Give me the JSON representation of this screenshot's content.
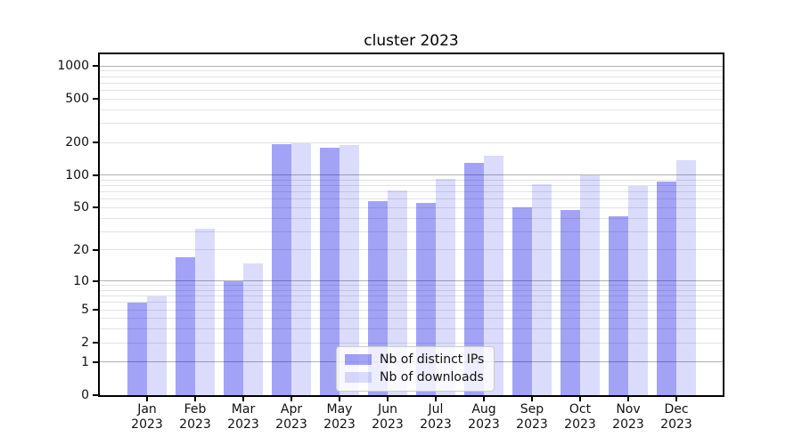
{
  "title": "cluster 2023",
  "chart_data": {
    "type": "bar",
    "title": "cluster 2023",
    "categories": [
      "Jan 2023",
      "Feb 2023",
      "Mar 2023",
      "Apr 2023",
      "May 2023",
      "Jun 2023",
      "Jul 2023",
      "Aug 2023",
      "Sep 2023",
      "Oct 2023",
      "Nov 2023",
      "Dec 2023"
    ],
    "series": [
      {
        "name": "Nb of distinct IPs",
        "color": "#a3a3f5",
        "css_color": "rgba(0,0,230,0.36)",
        "values": [
          6,
          17,
          10,
          192,
          180,
          58,
          55,
          130,
          50,
          48,
          42,
          88
        ]
      },
      {
        "name": "Nb of downloads",
        "color": "#dcdcfa",
        "css_color": "rgba(0,0,230,0.14)",
        "values": [
          7,
          32,
          15,
          196,
          189,
          72,
          93,
          150,
          82,
          100,
          80,
          137
        ]
      }
    ],
    "xlabel": "",
    "ylabel": "",
    "y_scale": "symlog-log1p",
    "y_ticks": [
      1000,
      500,
      200,
      100,
      50,
      20,
      10,
      5,
      2,
      1,
      0
    ],
    "y_major_gridlines": [
      1,
      10,
      100,
      1000
    ],
    "ylim": [
      0,
      1277
    ],
    "grid": true,
    "legend_position": "inside lower-center"
  },
  "colors": {
    "bar_distinct_ips": "rgba(0,0,230,0.36)",
    "bar_downloads": "rgba(0,0,230,0.14)",
    "grid_major": "#b0b0b0",
    "grid_minor": "#e2e2e2",
    "spine": "#000000",
    "legend_border": "#cccccc",
    "background": "#ffffff"
  }
}
